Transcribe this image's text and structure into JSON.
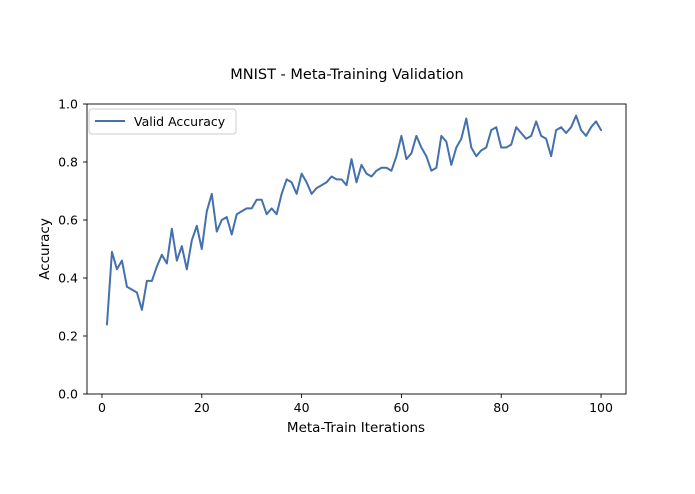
{
  "chart_data": {
    "type": "line",
    "title": "MNIST - Meta-Training Validation",
    "xlabel": "Meta-Train Iterations",
    "ylabel": "Accuracy",
    "xlim": [
      -3,
      105
    ],
    "ylim": [
      0.0,
      1.0
    ],
    "xticks": [
      0,
      20,
      40,
      60,
      80,
      100
    ],
    "yticks": [
      0.0,
      0.2,
      0.4,
      0.6,
      0.8,
      1.0
    ],
    "xtick_labels": [
      "0",
      "20",
      "40",
      "60",
      "80",
      "100"
    ],
    "ytick_labels": [
      "0.0",
      "0.2",
      "0.4",
      "0.6",
      "0.8",
      "1.0"
    ],
    "legend_position": "upper-left",
    "grid": false,
    "series": [
      {
        "name": "Valid Accuracy",
        "color": "#4470ad",
        "x": [
          1,
          2,
          3,
          4,
          5,
          6,
          7,
          8,
          9,
          10,
          11,
          12,
          13,
          14,
          15,
          16,
          17,
          18,
          19,
          20,
          21,
          22,
          23,
          24,
          25,
          26,
          27,
          28,
          29,
          30,
          31,
          32,
          33,
          34,
          35,
          36,
          37,
          38,
          39,
          40,
          41,
          42,
          43,
          44,
          45,
          46,
          47,
          48,
          49,
          50,
          51,
          52,
          53,
          54,
          55,
          56,
          57,
          58,
          59,
          60,
          61,
          62,
          63,
          64,
          65,
          66,
          67,
          68,
          69,
          70,
          71,
          72,
          73,
          74,
          75,
          76,
          77,
          78,
          79,
          80,
          81,
          82,
          83,
          84,
          85,
          86,
          87,
          88,
          89,
          90,
          91,
          92,
          93,
          94,
          95,
          96,
          97,
          98,
          99,
          100
        ],
        "values": [
          0.24,
          0.49,
          0.43,
          0.46,
          0.37,
          0.36,
          0.35,
          0.29,
          0.39,
          0.39,
          0.44,
          0.48,
          0.45,
          0.57,
          0.46,
          0.51,
          0.43,
          0.53,
          0.58,
          0.5,
          0.63,
          0.69,
          0.56,
          0.6,
          0.61,
          0.55,
          0.62,
          0.63,
          0.64,
          0.64,
          0.67,
          0.67,
          0.62,
          0.64,
          0.62,
          0.69,
          0.74,
          0.73,
          0.69,
          0.76,
          0.73,
          0.69,
          0.71,
          0.72,
          0.73,
          0.75,
          0.74,
          0.74,
          0.72,
          0.81,
          0.73,
          0.79,
          0.76,
          0.75,
          0.77,
          0.78,
          0.78,
          0.77,
          0.82,
          0.89,
          0.81,
          0.83,
          0.89,
          0.85,
          0.82,
          0.77,
          0.78,
          0.89,
          0.87,
          0.79,
          0.85,
          0.88,
          0.95,
          0.85,
          0.82,
          0.84,
          0.85,
          0.91,
          0.92,
          0.85,
          0.85,
          0.86,
          0.92,
          0.9,
          0.88,
          0.89,
          0.94,
          0.89,
          0.88,
          0.82,
          0.91,
          0.92,
          0.9,
          0.92,
          0.96,
          0.91,
          0.89,
          0.92,
          0.94,
          0.91
        ]
      }
    ]
  }
}
